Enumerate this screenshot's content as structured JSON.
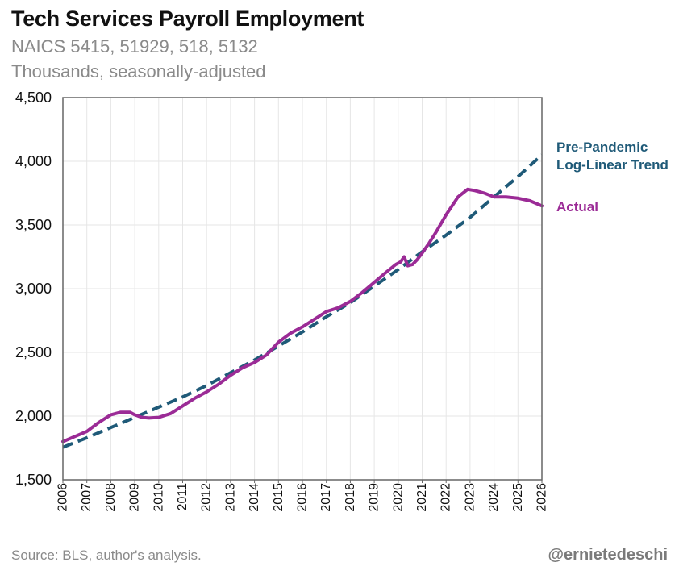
{
  "header": {
    "title": "Tech Services Payroll Employment",
    "subtitle1": "NAICS 5415, 51929, 518, 5132",
    "subtitle2": "Thousands, seasonally-adjusted"
  },
  "footer": {
    "source": "Source: BLS, author's analysis.",
    "handle": "@ernietedeschi"
  },
  "colors": {
    "actual": "#9b2b96",
    "trend": "#1f5a78",
    "grid": "#e6e6e6",
    "axis": "#666666"
  },
  "chart_data": {
    "type": "line",
    "title": "Tech Services Payroll Employment",
    "ylabel": "Thousands, seasonally-adjusted",
    "xlim": [
      2006,
      2026
    ],
    "ylim": [
      1500,
      4500
    ],
    "y_ticks": [
      1500,
      2000,
      2500,
      3000,
      3500,
      4000,
      4500
    ],
    "y_tick_labels": [
      "1,500",
      "2,000",
      "2,500",
      "3,000",
      "3,500",
      "4,000",
      "4,500"
    ],
    "x_ticks": [
      2006,
      2007,
      2008,
      2009,
      2010,
      2011,
      2012,
      2013,
      2014,
      2015,
      2016,
      2017,
      2018,
      2019,
      2020,
      2021,
      2022,
      2023,
      2024,
      2025,
      2026
    ],
    "x_tick_labels": [
      "2006",
      "2007",
      "2008",
      "2009",
      "2010",
      "2011",
      "2012",
      "2013",
      "2014",
      "2015",
      "2016",
      "2017",
      "2018",
      "2019",
      "2020",
      "2021",
      "2022",
      "2023",
      "2024",
      "2025",
      "2026"
    ],
    "grid": true,
    "legend": "direct labels at right",
    "series": [
      {
        "name": "Actual",
        "style": "solid",
        "x": [
          2006,
          2006.5,
          2007,
          2007.5,
          2008,
          2008.4,
          2008.8,
          2009,
          2009.3,
          2009.6,
          2010,
          2010.5,
          2011,
          2011.5,
          2012,
          2012.5,
          2013,
          2013.5,
          2014,
          2014.5,
          2015,
          2015.5,
          2016,
          2016.5,
          2017,
          2017.5,
          2018,
          2018.5,
          2019,
          2019.5,
          2019.9,
          2020.1,
          2020.25,
          2020.4,
          2020.6,
          2020.8,
          2021,
          2021.3,
          2021.6,
          2022,
          2022.5,
          2022.9,
          2023.2,
          2023.6,
          2024,
          2024.5,
          2025,
          2025.5,
          2026
        ],
        "y": [
          1800,
          1840,
          1880,
          1950,
          2010,
          2030,
          2030,
          2010,
          1990,
          1985,
          1990,
          2020,
          2080,
          2140,
          2190,
          2250,
          2320,
          2380,
          2420,
          2480,
          2580,
          2650,
          2700,
          2760,
          2820,
          2850,
          2900,
          2970,
          3050,
          3130,
          3190,
          3210,
          3250,
          3180,
          3190,
          3230,
          3280,
          3360,
          3450,
          3580,
          3720,
          3780,
          3770,
          3750,
          3720,
          3720,
          3710,
          3690,
          3650
        ]
      },
      {
        "name": "Pre-Pandemic Log-Linear Trend",
        "style": "dashed",
        "x": [
          2006,
          2007,
          2008,
          2009,
          2010,
          2011,
          2012,
          2013,
          2014,
          2015,
          2016,
          2017,
          2018,
          2019,
          2020,
          2021,
          2022,
          2023,
          2024,
          2025,
          2026
        ],
        "y": [
          1755,
          1830,
          1910,
          1990,
          2070,
          2150,
          2240,
          2340,
          2440,
          2550,
          2660,
          2780,
          2890,
          3020,
          3150,
          3290,
          3420,
          3560,
          3720,
          3880,
          4050
        ]
      }
    ],
    "annotations": [
      {
        "text": "Pre-Pandemic",
        "series": "Pre-Pandemic Log-Linear Trend"
      },
      {
        "text": "Log-Linear Trend",
        "series": "Pre-Pandemic Log-Linear Trend"
      },
      {
        "text": "Actual",
        "series": "Actual"
      }
    ]
  }
}
